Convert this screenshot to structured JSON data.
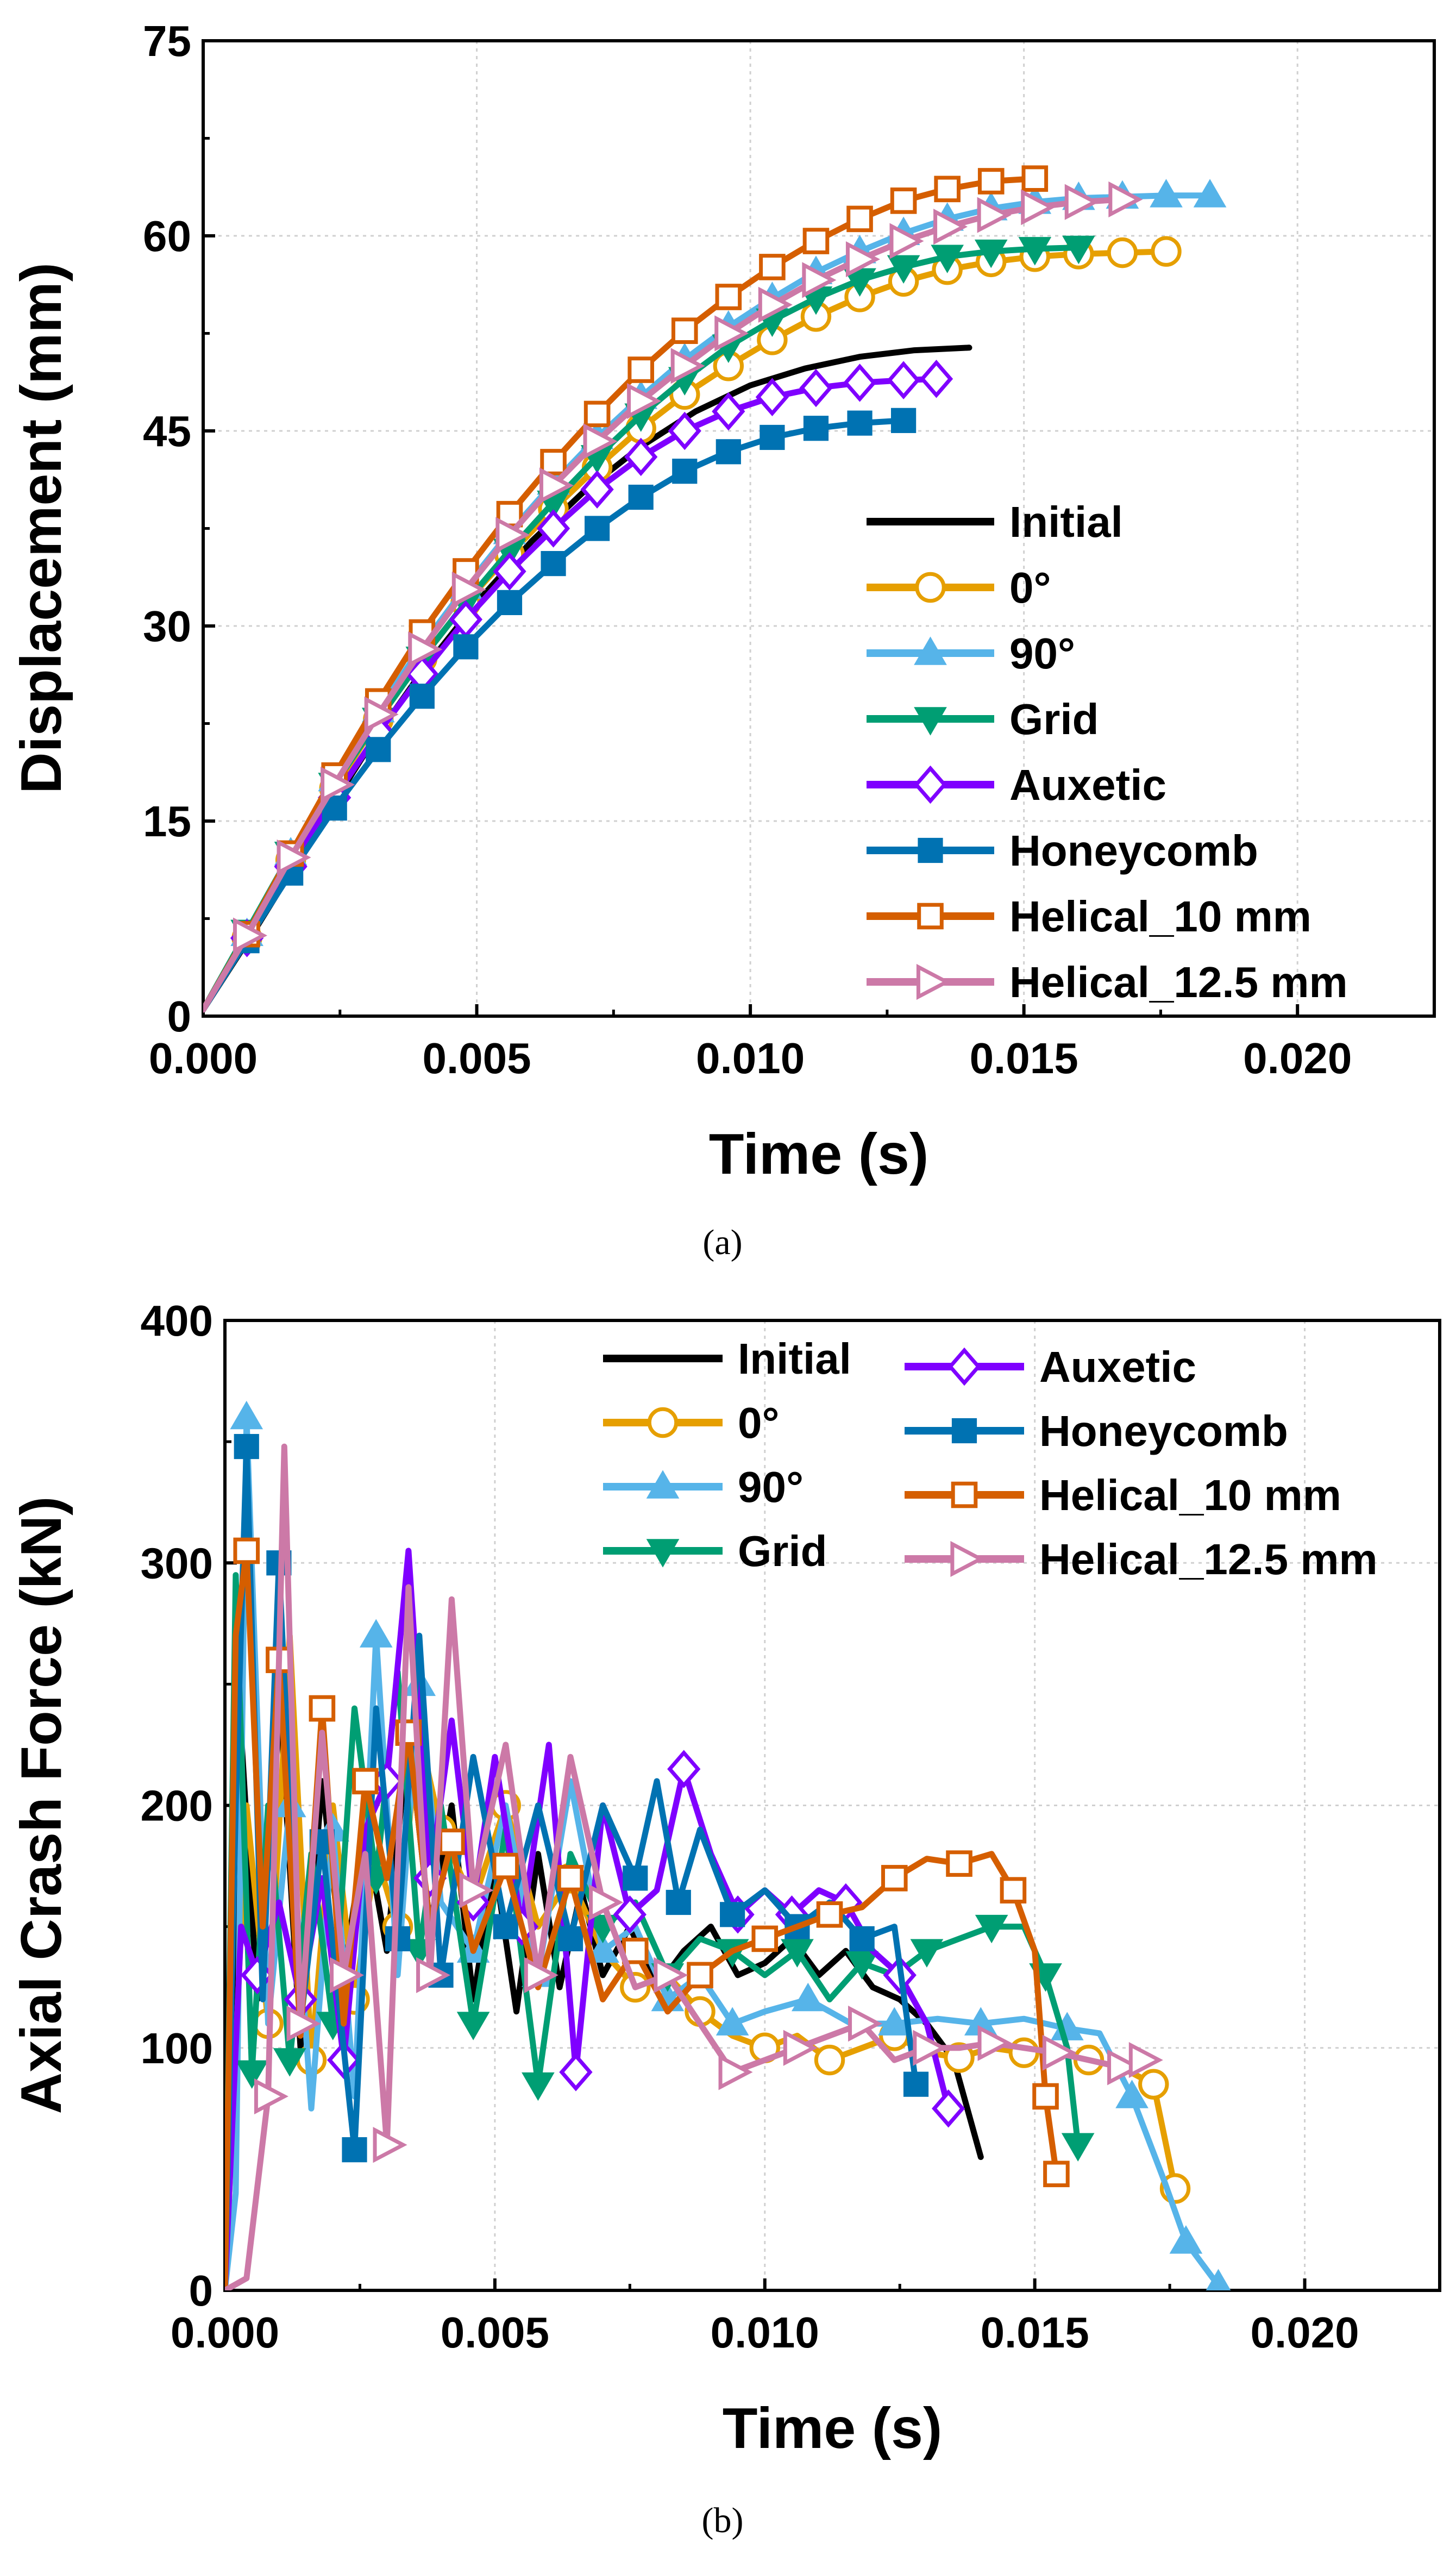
{
  "chart_data": [
    {
      "type": "line",
      "panel_label": "(a)",
      "title": "",
      "xlabel": "Time (s)",
      "ylabel": "Displacement (mm)",
      "xlim": [
        0,
        0.0225
      ],
      "ylim": [
        0,
        75
      ],
      "xticks": [
        0.0,
        0.005,
        0.01,
        0.015,
        0.02
      ],
      "xtick_labels": [
        "0.000",
        "0.005",
        "0.010",
        "0.015",
        "0.020"
      ],
      "yticks": [
        0,
        15,
        30,
        45,
        60,
        75
      ],
      "ytick_labels": [
        "0",
        "15",
        "30",
        "45",
        "60",
        "75"
      ],
      "grid": true,
      "legend_placement": "bottom-right",
      "series": [
        {
          "name": "Initial",
          "color": "#000000",
          "marker": "none",
          "x": [
            0.0,
            0.001,
            0.002,
            0.003,
            0.004,
            0.005,
            0.006,
            0.007,
            0.008,
            0.009,
            0.01,
            0.011,
            0.012,
            0.013,
            0.014
          ],
          "y": [
            0.5,
            7,
            13.8,
            20.5,
            26.5,
            31.8,
            36.5,
            40.5,
            43.8,
            46.5,
            48.5,
            49.8,
            50.7,
            51.2,
            51.4
          ]
        },
        {
          "name": "0°",
          "color": "#E69F00",
          "marker": "circle-open",
          "x": [
            0.0,
            0.0008,
            0.0016,
            0.0024,
            0.0032,
            0.004,
            0.0048,
            0.0056,
            0.0064,
            0.0072,
            0.008,
            0.0088,
            0.0096,
            0.0104,
            0.0112,
            0.012,
            0.0128,
            0.0136,
            0.0144,
            0.0152,
            0.016,
            0.0168,
            0.0176
          ],
          "y": [
            0.5,
            6,
            12,
            17.5,
            22.8,
            27.5,
            31.8,
            35.5,
            39,
            42.2,
            45.2,
            47.8,
            50,
            52,
            53.8,
            55.3,
            56.5,
            57.4,
            58.0,
            58.4,
            58.6,
            58.7,
            58.8
          ]
        },
        {
          "name": "90°",
          "color": "#56B4E9",
          "marker": "triangle-up",
          "x": [
            0.0,
            0.0008,
            0.0016,
            0.0024,
            0.0032,
            0.004,
            0.0048,
            0.0056,
            0.0064,
            0.0072,
            0.008,
            0.0088,
            0.0096,
            0.0104,
            0.0112,
            0.012,
            0.0128,
            0.0136,
            0.0144,
            0.0152,
            0.016,
            0.0168,
            0.0176,
            0.0184
          ],
          "y": [
            0.5,
            6.3,
            12.5,
            18.2,
            23.5,
            28.5,
            33,
            37.2,
            41,
            44.5,
            47.6,
            50.5,
            53,
            55.2,
            57.2,
            58.8,
            60.2,
            61.3,
            62.1,
            62.6,
            62.9,
            63.0,
            63.1,
            63.1
          ]
        },
        {
          "name": "Grid",
          "color": "#009E73",
          "marker": "triangle-down",
          "x": [
            0.0,
            0.0008,
            0.0016,
            0.0024,
            0.0032,
            0.004,
            0.0048,
            0.0056,
            0.0064,
            0.0072,
            0.008,
            0.0088,
            0.0096,
            0.0104,
            0.0112,
            0.012,
            0.0128,
            0.0136,
            0.0144,
            0.0152,
            0.016
          ],
          "y": [
            0.5,
            6.5,
            12.5,
            17.8,
            22.8,
            27.5,
            31.8,
            35.8,
            39.5,
            43,
            46.2,
            49,
            51.5,
            53.5,
            55.2,
            56.6,
            57.6,
            58.4,
            58.8,
            59.0,
            59.1
          ]
        },
        {
          "name": "Auxetic",
          "color": "#7F00FF",
          "marker": "diamond-open",
          "x": [
            0.0,
            0.0008,
            0.0016,
            0.0024,
            0.0032,
            0.004,
            0.0048,
            0.0056,
            0.0064,
            0.0072,
            0.008,
            0.0088,
            0.0096,
            0.0104,
            0.0112,
            0.012,
            0.0128,
            0.0134
          ],
          "y": [
            0.5,
            6,
            11.5,
            16.8,
            21.8,
            26.3,
            30.5,
            34.2,
            37.5,
            40.5,
            43,
            45,
            46.5,
            47.6,
            48.3,
            48.7,
            48.9,
            49.0
          ]
        },
        {
          "name": "Honeycomb",
          "color": "#0072B2",
          "marker": "square-filled",
          "x": [
            0.0,
            0.0008,
            0.0016,
            0.0024,
            0.0032,
            0.004,
            0.0048,
            0.0056,
            0.0064,
            0.0072,
            0.008,
            0.0088,
            0.0096,
            0.0104,
            0.0112,
            0.012,
            0.0128
          ],
          "y": [
            0.5,
            5.8,
            11,
            16,
            20.5,
            24.6,
            28.4,
            31.8,
            34.8,
            37.5,
            39.9,
            41.9,
            43.4,
            44.5,
            45.2,
            45.6,
            45.8
          ]
        },
        {
          "name": "Helical_10 mm",
          "color": "#D55E00",
          "marker": "square-open",
          "x": [
            0.0,
            0.0008,
            0.0016,
            0.0024,
            0.0032,
            0.004,
            0.0048,
            0.0056,
            0.0064,
            0.0072,
            0.008,
            0.0088,
            0.0096,
            0.0104,
            0.0112,
            0.012,
            0.0128,
            0.0136,
            0.0144,
            0.0152
          ],
          "y": [
            0.5,
            6.3,
            12.5,
            18.5,
            24.2,
            29.5,
            34.2,
            38.6,
            42.6,
            46.3,
            49.7,
            52.7,
            55.3,
            57.6,
            59.6,
            61.3,
            62.7,
            63.6,
            64.2,
            64.4
          ]
        },
        {
          "name": "Helical_12.5 mm",
          "color": "#CC79A7",
          "marker": "triangle-right-open",
          "x": [
            0.0,
            0.0008,
            0.0016,
            0.0024,
            0.0032,
            0.004,
            0.0048,
            0.0056,
            0.0064,
            0.0072,
            0.008,
            0.0088,
            0.0096,
            0.0104,
            0.0112,
            0.012,
            0.0128,
            0.0136,
            0.0144,
            0.0152,
            0.016,
            0.0168
          ],
          "y": [
            0.5,
            6.2,
            12.2,
            17.8,
            23.2,
            28.2,
            32.8,
            37,
            40.8,
            44.2,
            47.3,
            50,
            52.5,
            54.7,
            56.6,
            58.2,
            59.6,
            60.7,
            61.6,
            62.2,
            62.6,
            62.8
          ]
        }
      ]
    },
    {
      "type": "line",
      "panel_label": "(b)",
      "title": "",
      "xlabel": "Time (s)",
      "ylabel": "Axial Crash Force (kN)",
      "xlim": [
        0,
        0.0225
      ],
      "ylim": [
        0,
        400
      ],
      "xticks": [
        0.0,
        0.005,
        0.01,
        0.015,
        0.02
      ],
      "xtick_labels": [
        "0.000",
        "0.005",
        "0.010",
        "0.015",
        "0.020"
      ],
      "yticks": [
        0,
        100,
        200,
        300,
        400
      ],
      "ytick_labels": [
        "0",
        "100",
        "200",
        "300",
        "400"
      ],
      "grid": true,
      "legend_placement": "top-right",
      "series": [
        {
          "name": "Initial",
          "color": "#000000",
          "marker": "none",
          "x": [
            0.0,
            0.0003,
            0.0006,
            0.001,
            0.0014,
            0.0018,
            0.0022,
            0.0026,
            0.003,
            0.0034,
            0.0038,
            0.0042,
            0.0046,
            0.005,
            0.0054,
            0.0058,
            0.0062,
            0.0066,
            0.007,
            0.0075,
            0.008,
            0.0085,
            0.009,
            0.0095,
            0.01,
            0.0105,
            0.011,
            0.0115,
            0.012,
            0.0125,
            0.013,
            0.0135,
            0.014
          ],
          "y": [
            0,
            230,
            120,
            250,
            100,
            210,
            130,
            190,
            140,
            230,
            150,
            200,
            120,
            175,
            115,
            180,
            125,
            165,
            130,
            150,
            125,
            140,
            150,
            130,
            135,
            145,
            130,
            140,
            125,
            120,
            110,
            95,
            55
          ]
        },
        {
          "name": "0°",
          "color": "#E69F00",
          "marker": "circle-open",
          "x": [
            0.0,
            0.0004,
            0.0008,
            0.0012,
            0.0016,
            0.002,
            0.0024,
            0.0028,
            0.0032,
            0.0036,
            0.004,
            0.0046,
            0.0052,
            0.0058,
            0.0064,
            0.007,
            0.0076,
            0.0082,
            0.0088,
            0.0094,
            0.01,
            0.0106,
            0.0112,
            0.0118,
            0.0124,
            0.013,
            0.0136,
            0.0142,
            0.0148,
            0.0154,
            0.016,
            0.0166,
            0.0172,
            0.0176
          ],
          "y": [
            0,
            200,
            110,
            270,
            95,
            200,
            120,
            180,
            150,
            230,
            190,
            160,
            200,
            150,
            170,
            140,
            125,
            130,
            115,
            105,
            100,
            105,
            95,
            100,
            105,
            98,
            96,
            100,
            98,
            100,
            95,
            92,
            85,
            42
          ]
        },
        {
          "name": "90°",
          "color": "#56B4E9",
          "marker": "triangle-up",
          "x": [
            0.0,
            0.0002,
            0.0004,
            0.0008,
            0.0012,
            0.0016,
            0.002,
            0.0024,
            0.0028,
            0.0032,
            0.0036,
            0.004,
            0.0046,
            0.0052,
            0.0058,
            0.0064,
            0.007,
            0.0076,
            0.0082,
            0.0088,
            0.0094,
            0.01,
            0.0108,
            0.0116,
            0.0124,
            0.0132,
            0.014,
            0.0148,
            0.0156,
            0.0162,
            0.0168,
            0.0174,
            0.0178,
            0.0184
          ],
          "y": [
            0,
            40,
            360,
            110,
            200,
            75,
            190,
            80,
            270,
            130,
            250,
            160,
            140,
            200,
            130,
            210,
            140,
            150,
            120,
            130,
            110,
            115,
            120,
            110,
            110,
            112,
            110,
            112,
            108,
            106,
            80,
            45,
            20,
            2
          ]
        },
        {
          "name": "Grid",
          "color": "#009E73",
          "marker": "triangle-down",
          "x": [
            0.0,
            0.0002,
            0.0005,
            0.0008,
            0.0012,
            0.0016,
            0.002,
            0.0024,
            0.0028,
            0.0032,
            0.0036,
            0.004,
            0.0046,
            0.0052,
            0.0058,
            0.0064,
            0.007,
            0.0076,
            0.0082,
            0.0088,
            0.0094,
            0.01,
            0.0106,
            0.0112,
            0.0118,
            0.0124,
            0.013,
            0.0136,
            0.0142,
            0.0148,
            0.0152,
            0.0156,
            0.0158
          ],
          "y": [
            0,
            295,
            90,
            200,
            95,
            180,
            110,
            240,
            170,
            255,
            140,
            200,
            110,
            190,
            85,
            180,
            150,
            160,
            130,
            145,
            140,
            130,
            140,
            120,
            135,
            130,
            140,
            145,
            150,
            150,
            130,
            100,
            60
          ]
        },
        {
          "name": "Auxetic",
          "color": "#7F00FF",
          "marker": "diamond-open",
          "x": [
            0.0,
            0.0003,
            0.0006,
            0.001,
            0.0014,
            0.0018,
            0.0022,
            0.0026,
            0.003,
            0.0034,
            0.0038,
            0.0042,
            0.0046,
            0.005,
            0.0055,
            0.006,
            0.0065,
            0.007,
            0.0075,
            0.008,
            0.0085,
            0.009,
            0.0095,
            0.01,
            0.0105,
            0.011,
            0.0115,
            0.012,
            0.0125,
            0.013,
            0.0134
          ],
          "y": [
            0,
            150,
            130,
            160,
            120,
            170,
            95,
            190,
            210,
            305,
            170,
            235,
            160,
            220,
            150,
            225,
            90,
            200,
            155,
            165,
            215,
            180,
            155,
            165,
            155,
            165,
            160,
            140,
            130,
            110,
            75
          ]
        },
        {
          "name": "Honeycomb",
          "color": "#0072B2",
          "marker": "square-filled",
          "x": [
            0.0,
            0.0002,
            0.0004,
            0.0007,
            0.001,
            0.0014,
            0.0018,
            0.0022,
            0.0024,
            0.0028,
            0.0032,
            0.0036,
            0.004,
            0.0046,
            0.0052,
            0.0058,
            0.0064,
            0.007,
            0.0076,
            0.008,
            0.0084,
            0.0088,
            0.0094,
            0.01,
            0.0106,
            0.0112,
            0.0118,
            0.0124,
            0.0128
          ],
          "y": [
            0,
            200,
            348,
            120,
            300,
            110,
            185,
            100,
            58,
            240,
            145,
            270,
            130,
            220,
            150,
            200,
            145,
            200,
            170,
            210,
            160,
            190,
            155,
            165,
            150,
            160,
            145,
            150,
            85
          ]
        },
        {
          "name": "Helical_10 mm",
          "color": "#D55E00",
          "marker": "square-open",
          "x": [
            0.0,
            0.0002,
            0.0004,
            0.0007,
            0.001,
            0.0014,
            0.0018,
            0.0022,
            0.0026,
            0.003,
            0.0034,
            0.0038,
            0.0042,
            0.0046,
            0.0052,
            0.0058,
            0.0064,
            0.007,
            0.0076,
            0.0082,
            0.0088,
            0.0094,
            0.01,
            0.0106,
            0.0112,
            0.0118,
            0.0124,
            0.013,
            0.0136,
            0.0142,
            0.0146,
            0.015,
            0.0152,
            0.0154
          ],
          "y": [
            0,
            270,
            305,
            150,
            260,
            105,
            240,
            110,
            210,
            170,
            230,
            150,
            185,
            140,
            175,
            125,
            170,
            120,
            140,
            115,
            130,
            140,
            145,
            150,
            155,
            158,
            170,
            178,
            176,
            180,
            165,
            140,
            80,
            48
          ]
        },
        {
          "name": "Helical_12.5 mm",
          "color": "#CC79A7",
          "marker": "triangle-right-open",
          "x": [
            0.0,
            0.0004,
            0.0008,
            0.0011,
            0.0014,
            0.0018,
            0.0022,
            0.0026,
            0.003,
            0.0034,
            0.0038,
            0.0042,
            0.0046,
            0.0052,
            0.0058,
            0.0064,
            0.007,
            0.0076,
            0.0082,
            0.0088,
            0.0094,
            0.01,
            0.0106,
            0.0112,
            0.0118,
            0.0124,
            0.013,
            0.0136,
            0.0142,
            0.0148,
            0.0154,
            0.016,
            0.0166,
            0.017
          ],
          "y": [
            0,
            5,
            80,
            348,
            110,
            230,
            130,
            180,
            60,
            290,
            130,
            285,
            165,
            225,
            130,
            220,
            160,
            125,
            130,
            110,
            90,
            95,
            100,
            105,
            110,
            95,
            100,
            100,
            102,
            100,
            98,
            95,
            92,
            95
          ]
        }
      ]
    }
  ],
  "captions": [
    "(a)",
    "(b)"
  ]
}
